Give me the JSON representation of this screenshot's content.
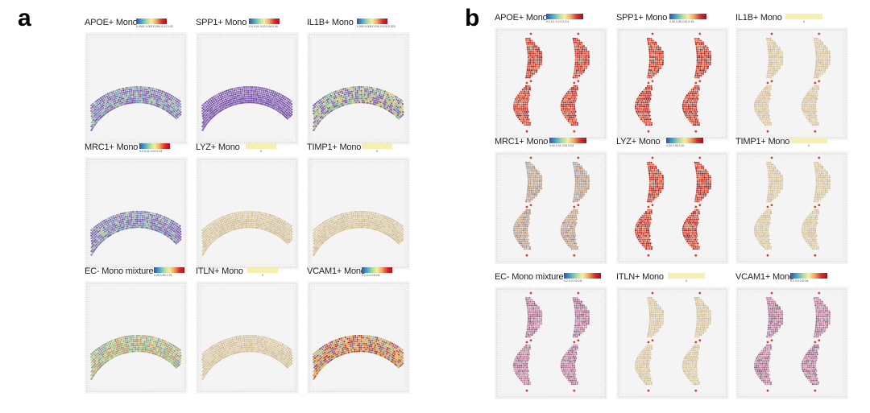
{
  "panels": [
    {
      "letter": "a",
      "cells": [
        {
          "title": "APOE+ Mono",
          "legend": "gradient",
          "ticks": "0.0001 0.002 0.004 0.01 0.02",
          "palette": "purple-mix"
        },
        {
          "title": "SPP1+ Mono",
          "legend": "gradient",
          "ticks": "0.0 0.01 0.02 0.04 0.06",
          "palette": "purple"
        },
        {
          "title": "IL1B+ Mono",
          "legend": "gradient",
          "ticks": "0.000 0.005 0.010 0.015 0.020",
          "palette": "purple-green"
        },
        {
          "title": "MRC1+ Mono",
          "legend": "gradient",
          "ticks": "0.0 0.01 0.02 0.03",
          "palette": "purple-mix"
        },
        {
          "title": "LYZ+ Mono",
          "legend": "flat",
          "ticks": "0",
          "palette": "tan"
        },
        {
          "title": "TIMP1+ Mono",
          "legend": "flat",
          "ticks": "0",
          "palette": "tan"
        },
        {
          "title": "EC- Mono mixture",
          "legend": "gradient",
          "ticks": "0.25 0.50 0.75",
          "palette": "green-mix"
        },
        {
          "title": "ITLN+ Mono",
          "legend": "flat",
          "ticks": "0",
          "palette": "tan"
        },
        {
          "title": "VCAM1+ Mono",
          "legend": "gradient",
          "ticks": "0.2 0.4 0.6 0.8",
          "palette": "orange-red"
        }
      ]
    },
    {
      "letter": "b",
      "cells": [
        {
          "title": "APOE+ Mono",
          "legend": "gradient",
          "ticks": "0.0 0.1 0.2 0.3 0.4",
          "palette": "red"
        },
        {
          "title": "SPP1+ Mono",
          "legend": "gradient",
          "ticks": "0.00 0.05 0.10 0.15",
          "palette": "red"
        },
        {
          "title": "IL1B+ Mono",
          "legend": "flat",
          "ticks": "0",
          "palette": "tan"
        },
        {
          "title": "MRC1+ Mono",
          "legend": "gradient",
          "ticks": "0.00 0.01 0.02 0.03",
          "palette": "tan-mix"
        },
        {
          "title": "LYZ+ Mono",
          "legend": "gradient",
          "ticks": "0.00 0.05 0.10",
          "palette": "red"
        },
        {
          "title": "TIMP1+ Mono",
          "legend": "flat",
          "ticks": "0",
          "palette": "tan"
        },
        {
          "title": "EC- Mono mixture",
          "legend": "gradient",
          "ticks": "0.2 0.4 0.6 0.8",
          "palette": "mauve"
        },
        {
          "title": "ITLN+ Mono",
          "legend": "flat",
          "ticks": "0",
          "palette": "tan"
        },
        {
          "title": "VCAM1+ Mono",
          "legend": "gradient",
          "ticks": "0.2 0.4 0.6 0.8",
          "palette": "mauve"
        }
      ]
    }
  ],
  "colors": {
    "gradient": [
      "#3a4fa0",
      "#41a6c8",
      "#a8d8a0",
      "#f6f0a0",
      "#f4a45c",
      "#d7302f",
      "#a50f26"
    ],
    "flat_legend": "#f6efb0",
    "slide_bg": "#f4f4f4",
    "slide_frame": "#cfcfcf",
    "spot_palettes": {
      "purple": [
        "#7b57a8",
        "#8a62b5",
        "#6e4f9c",
        "#9a78c0"
      ],
      "purple-mix": [
        "#7b57a8",
        "#8a62b5",
        "#6a9fb8",
        "#9bc58e",
        "#8c7bb8"
      ],
      "purple-green": [
        "#7b57a8",
        "#a8c46e",
        "#6fb3a5",
        "#e0c56a",
        "#8a62b5"
      ],
      "tan": [
        "#d9c7a3",
        "#cfbc98",
        "#e0d0ad"
      ],
      "green-mix": [
        "#a7c58a",
        "#8eb97c",
        "#c9d48e",
        "#6ea6b8",
        "#b88a6a",
        "#d89a5a"
      ],
      "orange-red": [
        "#e3943e",
        "#d1562b",
        "#e8b05a",
        "#b83a2c",
        "#9cbf7a",
        "#7a6fb0"
      ],
      "red": [
        "#c53a2f",
        "#b22f2b",
        "#d9533a",
        "#a0232b",
        "#e07a45"
      ],
      "tan-mix": [
        "#cbb392",
        "#b8a08a",
        "#9fa3b0",
        "#c8a080",
        "#b07f6e"
      ],
      "mauve": [
        "#b77b98",
        "#a8708e",
        "#c58aa8",
        "#8f5f80",
        "#d09ab0"
      ]
    }
  }
}
